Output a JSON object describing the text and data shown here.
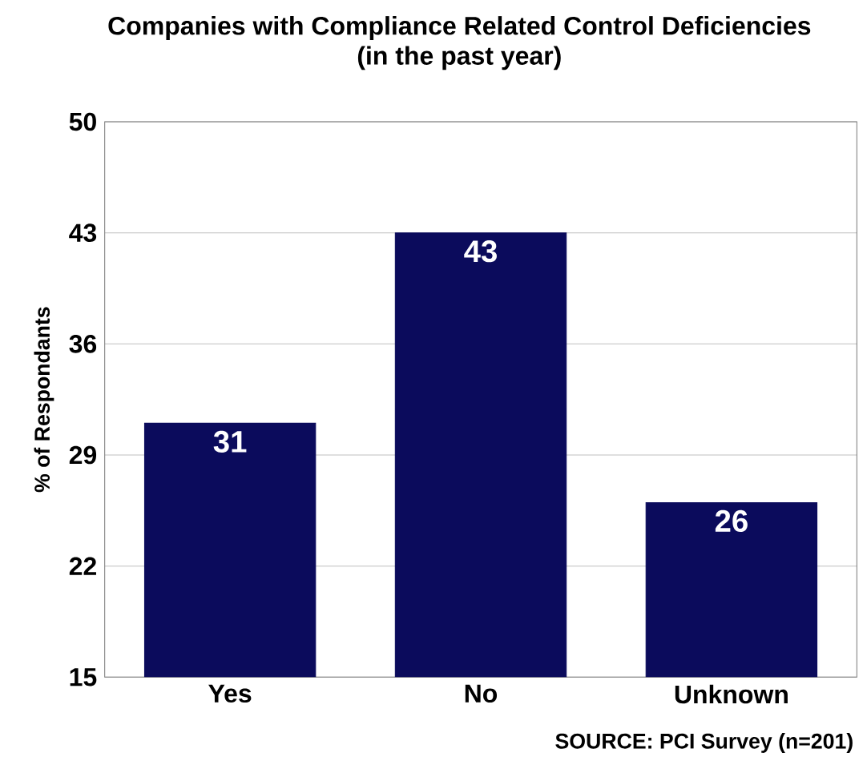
{
  "chart_data": {
    "type": "bar",
    "title": "Companies with Compliance Related Control Deficiencies",
    "subtitle": "(in the past year)",
    "ylabel": "% of Respondants",
    "categories": [
      "Yes",
      "No",
      "Unknown"
    ],
    "values": [
      31,
      43,
      26
    ],
    "color": "#0b0b5c",
    "ylim": [
      15,
      50
    ],
    "yticks": [
      15,
      22,
      29,
      36,
      43,
      50
    ],
    "grid": "y",
    "data_labels": true,
    "annotations": [
      "SOURCE: PCI Survey (n=201)"
    ]
  }
}
